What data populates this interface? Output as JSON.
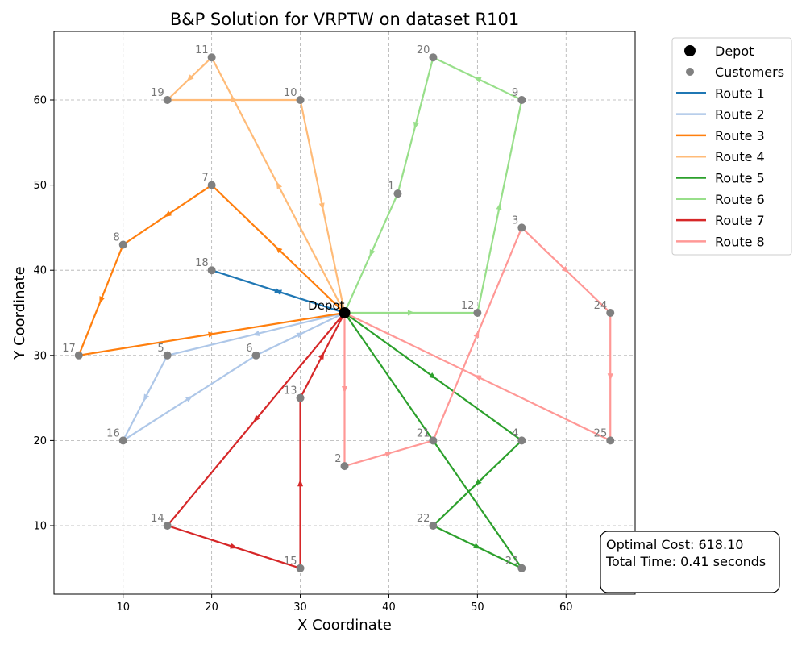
{
  "chart_data": {
    "type": "line",
    "title": "B&P Solution for VRPTW on dataset R101",
    "xlabel": "X Coordinate",
    "ylabel": "Y Coordinate",
    "xlim": [
      2.2,
      67.8
    ],
    "ylim": [
      1.95,
      68.05
    ],
    "xticks": [
      10,
      20,
      30,
      40,
      50,
      60
    ],
    "yticks": [
      10,
      20,
      30,
      40,
      50,
      60
    ],
    "grid": true,
    "legend_position": "outside-top-right",
    "depot": {
      "label": "Depot",
      "x": 35,
      "y": 35
    },
    "customers": [
      {
        "id": "1",
        "x": 41,
        "y": 49
      },
      {
        "id": "2",
        "x": 35,
        "y": 17
      },
      {
        "id": "3",
        "x": 55,
        "y": 45
      },
      {
        "id": "4",
        "x": 55,
        "y": 20
      },
      {
        "id": "5",
        "x": 15,
        "y": 30
      },
      {
        "id": "6",
        "x": 25,
        "y": 30
      },
      {
        "id": "7",
        "x": 20,
        "y": 50
      },
      {
        "id": "8",
        "x": 10,
        "y": 43
      },
      {
        "id": "9",
        "x": 55,
        "y": 60
      },
      {
        "id": "10",
        "x": 30,
        "y": 60
      },
      {
        "id": "11",
        "x": 20,
        "y": 65
      },
      {
        "id": "12",
        "x": 50,
        "y": 35
      },
      {
        "id": "13",
        "x": 30,
        "y": 25
      },
      {
        "id": "14",
        "x": 15,
        "y": 10
      },
      {
        "id": "15",
        "x": 30,
        "y": 5
      },
      {
        "id": "16",
        "x": 10,
        "y": 20
      },
      {
        "id": "17",
        "x": 5,
        "y": 30
      },
      {
        "id": "18",
        "x": 20,
        "y": 40
      },
      {
        "id": "19",
        "x": 15,
        "y": 60
      },
      {
        "id": "20",
        "x": 45,
        "y": 65
      },
      {
        "id": "21",
        "x": 45,
        "y": 20
      },
      {
        "id": "22",
        "x": 45,
        "y": 10
      },
      {
        "id": "23",
        "x": 55,
        "y": 5
      },
      {
        "id": "24",
        "x": 65,
        "y": 35
      },
      {
        "id": "25",
        "x": 65,
        "y": 20
      }
    ],
    "series": [
      {
        "name": "Route 1",
        "color": "#1f77b4",
        "stops": [
          "18"
        ]
      },
      {
        "name": "Route 2",
        "color": "#aec7e8",
        "stops": [
          "5",
          "16",
          "6"
        ]
      },
      {
        "name": "Route 3",
        "color": "#ff7f0e",
        "stops": [
          "7",
          "8",
          "17"
        ]
      },
      {
        "name": "Route 4",
        "color": "#ffbb78",
        "stops": [
          "11",
          "19",
          "10"
        ]
      },
      {
        "name": "Route 5",
        "color": "#2ca02c",
        "stops": [
          "4",
          "22",
          "23"
        ]
      },
      {
        "name": "Route 6",
        "color": "#98df8a",
        "stops": [
          "12",
          "9",
          "20",
          "1"
        ]
      },
      {
        "name": "Route 7",
        "color": "#d62728",
        "stops": [
          "14",
          "15",
          "13"
        ]
      },
      {
        "name": "Route 8",
        "color": "#ff9896",
        "stops": [
          "2",
          "21",
          "3",
          "24",
          "25"
        ]
      }
    ],
    "legend": {
      "depot_label": "Depot",
      "customers_label": "Customers"
    },
    "depot_color": "#000000",
    "customer_color": "#808080"
  },
  "summary": {
    "cost_line": "Optimal Cost: 618.10",
    "time_line": "Total Time: 0.41 seconds"
  }
}
